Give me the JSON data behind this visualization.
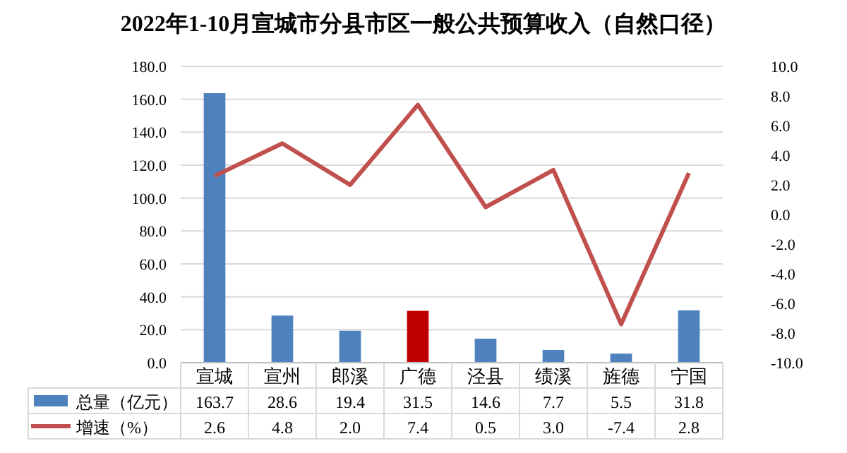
{
  "chart_data": {
    "type": "bar",
    "title": "2022年1-10月宣城市分县市区一般公共预算收入（自然口径）",
    "categories": [
      "宣城",
      "宣州",
      "郎溪",
      "广德",
      "泾县",
      "绩溪",
      "旌德",
      "宁国"
    ],
    "series": [
      {
        "name": "总量（亿元）",
        "color": "#4f81bd",
        "colors": [
          "#4f81bd",
          "#4f81bd",
          "#4f81bd",
          "#c00000",
          "#4f81bd",
          "#4f81bd",
          "#4f81bd",
          "#4f81bd"
        ],
        "values": [
          163.7,
          28.6,
          19.4,
          31.5,
          14.6,
          7.7,
          5.5,
          31.8
        ]
      },
      {
        "name": "增速（%）",
        "type": "line",
        "axis": "y2",
        "color": "#c0504d",
        "values": [
          2.6,
          4.8,
          2.0,
          7.4,
          0.5,
          3.0,
          -7.4,
          2.8
        ],
        "value_labels": [
          "2.6",
          "4.8",
          "2.0",
          "7.4",
          "0.5",
          "3.0",
          "-7.4",
          "2.8"
        ]
      }
    ],
    "ylim": [
      0,
      180
    ],
    "yticks": [
      {
        "value": 0,
        "label": "0.0"
      },
      {
        "value": 20,
        "label": "20.0"
      },
      {
        "value": 40,
        "label": "40.0"
      },
      {
        "value": 60,
        "label": "60.0"
      },
      {
        "value": 80,
        "label": "80.0"
      },
      {
        "value": 100,
        "label": "100.0"
      },
      {
        "value": 120,
        "label": "120.0"
      },
      {
        "value": 140,
        "label": "140.0"
      },
      {
        "value": 160,
        "label": "160.0"
      },
      {
        "value": 180,
        "label": "180.0"
      }
    ],
    "y2lim": [
      -10,
      10
    ],
    "y2ticks": [
      {
        "value": -10,
        "label": "-10.0"
      },
      {
        "value": -8,
        "label": "-8.0"
      },
      {
        "value": -6,
        "label": "-6.0"
      },
      {
        "value": -4,
        "label": "-4.0"
      },
      {
        "value": -2,
        "label": "-2.0"
      },
      {
        "value": 0,
        "label": "0.0"
      },
      {
        "value": 2,
        "label": "2.0"
      },
      {
        "value": 4,
        "label": "4.0"
      },
      {
        "value": 6,
        "label": "6.0"
      },
      {
        "value": 8,
        "label": "8.0"
      },
      {
        "value": 10,
        "label": "10.0"
      }
    ],
    "grid": "y",
    "legend": "bottom",
    "data_labels": true,
    "marker": "none",
    "line_style": "solid"
  }
}
